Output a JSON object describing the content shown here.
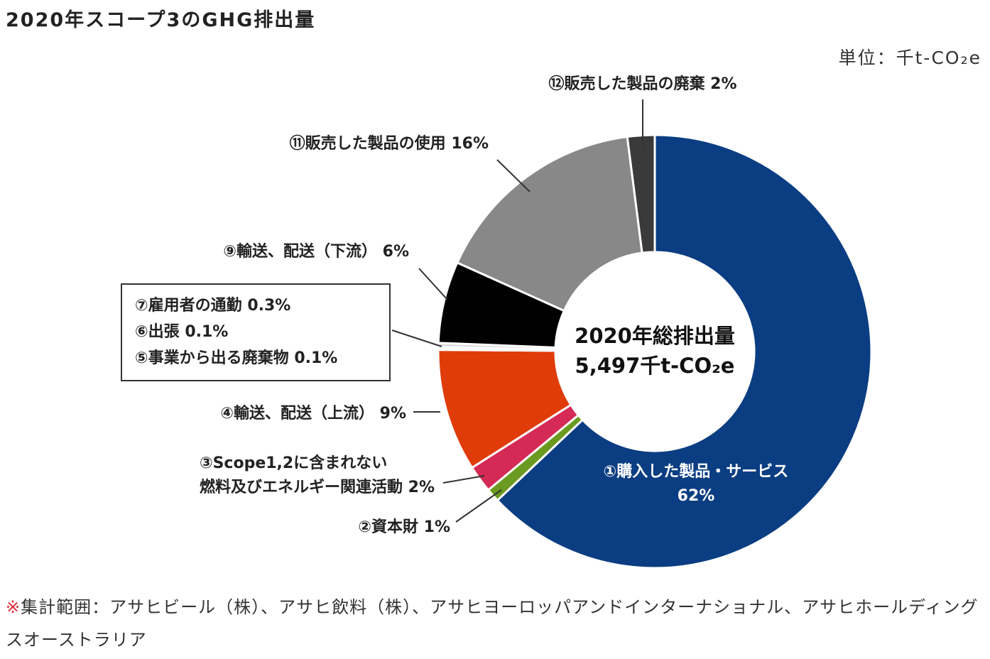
{
  "title": "2020年スコープ3のGHG排出量",
  "unit": "単位：千t-CO₂e",
  "chart_data": {
    "type": "donut",
    "categories": [
      "①購入した製品・サービス",
      "②資本財",
      "③Scope1,2に含まれない\n燃料及びエネルギー関連活動",
      "④輸送、配送（上流）",
      "⑤事業から出る廃棄物",
      "⑥出張",
      "⑦雇用者の通勤",
      "⑨輸送、配送（下流）",
      "⑪販売した製品の使用",
      "⑫販売した製品の廃棄"
    ],
    "values": [
      62,
      1,
      2,
      9,
      0.1,
      0.1,
      0.3,
      6,
      16,
      2
    ],
    "value_labels": [
      "62%",
      "1%",
      "2%",
      "9%",
      "0.1%",
      "0.1%",
      "0.3%",
      "6%",
      "16%",
      "2%"
    ],
    "colors": [
      "#0b3d82",
      "#6a9a1f",
      "#d42a55",
      "#e03c0a",
      "#d9d9d9",
      "#d9d9d9",
      "#d9d9d9",
      "#000000",
      "#888888",
      "#3a3a3a"
    ],
    "center_label": [
      "2020年総排出量",
      "5,497千t-CO₂e"
    ]
  },
  "note": {
    "mark": "※",
    "text": "集計範囲：アサヒビール（株）、アサヒ飲料（株）、アサヒヨーロッパアンドインターナショナル、アサヒホールディングスオーストラリア"
  }
}
